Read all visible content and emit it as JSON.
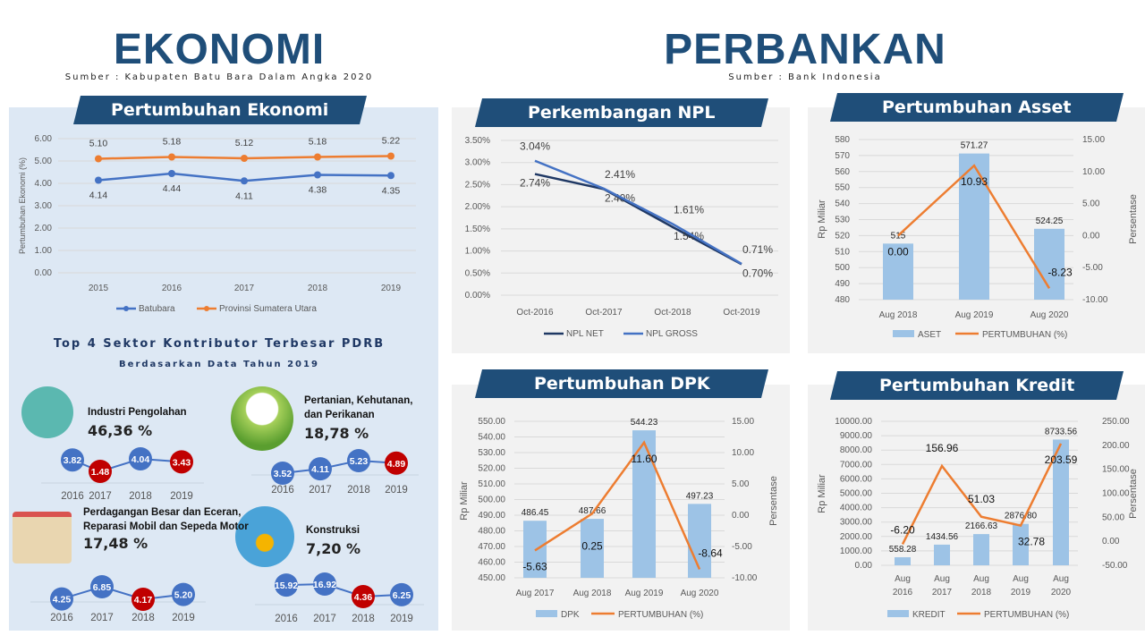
{
  "ekonomi": {
    "title": "EKONOMI",
    "source": "Sumber : Kabupaten Batu Bara Dalam Angka 2020"
  },
  "perbankan": {
    "title": "PERBANKAN",
    "source": "Sumber : Bank Indonesia"
  },
  "colors": {
    "navy": "#1f4e79",
    "blue": "#4472c4",
    "orange": "#ed7d31",
    "bar": "#9dc3e6",
    "red": "#c00000",
    "dark": "#1f3864"
  },
  "top4": {
    "title": "Top 4 Sektor Kontributor Terbesar PDRB",
    "subtitle": "Berdasarkan Data Tahun 2019",
    "sectors": [
      {
        "name": "Industri Pengolahan",
        "share": "46,36 %",
        "icon": "factory-icon",
        "years": [
          "2016",
          "2017",
          "2018",
          "2019"
        ],
        "values": [
          3.82,
          1.48,
          4.04,
          3.43
        ]
      },
      {
        "name": "Pertanian, Kehutanan, dan Perikanan",
        "share": "18,78 %",
        "icon": "farm-icon",
        "years": [
          "2016",
          "2017",
          "2018",
          "2019"
        ],
        "values": [
          3.52,
          4.11,
          5.23,
          4.89
        ]
      },
      {
        "name": "Perdagangan Besar dan Eceran, Reparasi Mobil dan Sepeda Motor",
        "share": "17,48 %",
        "icon": "shopping-icon",
        "years": [
          "2016",
          "2017",
          "2018",
          "2019"
        ],
        "values": [
          4.25,
          6.85,
          4.17,
          5.2
        ]
      },
      {
        "name": "Konstruksi",
        "share": "7,20 %",
        "icon": "construction-icon",
        "years": [
          "2016",
          "2017",
          "2018",
          "2019"
        ],
        "values": [
          15.92,
          16.92,
          4.36,
          6.25
        ]
      }
    ]
  },
  "chart_data": [
    {
      "id": "ekonomi",
      "type": "line",
      "title": "Pertumbuhan Ekonomi",
      "ylabel": "Pertumbuhan Ekonomi (%)",
      "categories": [
        "2015",
        "2016",
        "2017",
        "2018",
        "2019"
      ],
      "ylim": [
        0,
        6
      ],
      "yticks": [
        "0.00",
        "1.00",
        "2.00",
        "3.00",
        "4.00",
        "5.00",
        "6.00"
      ],
      "legend": "bottom",
      "series": [
        {
          "name": "Batubara",
          "color": "#4472c4",
          "values": [
            4.14,
            4.44,
            4.11,
            4.38,
            4.35
          ],
          "labels": [
            "4.14",
            "4.44",
            "4.11",
            "4.38",
            "4.35"
          ]
        },
        {
          "name": "Provinsi Sumatera Utara",
          "color": "#ed7d31",
          "values": [
            5.1,
            5.18,
            5.12,
            5.18,
            5.22
          ],
          "labels": [
            "5.10",
            "5.18",
            "5.12",
            "5.18",
            "5.22"
          ]
        }
      ]
    },
    {
      "id": "npl",
      "type": "line",
      "title": "Perkembangan NPL",
      "categories": [
        "Oct-2016",
        "Oct-2017",
        "Oct-2018",
        "Oct-2019"
      ],
      "ylim": [
        0,
        3.5
      ],
      "yticks": [
        "0.00%",
        "0.50%",
        "1.00%",
        "1.50%",
        "2.00%",
        "2.50%",
        "3.00%",
        "3.50%"
      ],
      "legend": "bottom",
      "series": [
        {
          "name": "NPL NET",
          "color": "#1f3864",
          "values": [
            2.74,
            2.4,
            1.54,
            0.7
          ],
          "labels": [
            "2.74%",
            "2.40%",
            "1.54%",
            "0.70%"
          ]
        },
        {
          "name": "NPL GROSS",
          "color": "#4472c4",
          "values": [
            3.04,
            2.41,
            1.61,
            0.71
          ],
          "labels": [
            "3.04%",
            "2.41%",
            "1.61%",
            "0.71%"
          ]
        }
      ]
    },
    {
      "id": "asset",
      "type": "bar+line",
      "title": "Pertumbuhan Asset",
      "ylabel": "Rp Miliar",
      "y2label": "Persentase",
      "categories": [
        "Aug 2018",
        "Aug 2019",
        "Aug 2020"
      ],
      "ylim": [
        480,
        580
      ],
      "yticks": [
        "480",
        "490",
        "500",
        "510",
        "520",
        "530",
        "540",
        "550",
        "560",
        "570",
        "580"
      ],
      "y2lim": [
        -10,
        15
      ],
      "y2ticks": [
        "-10.00",
        "-5.00",
        "0.00",
        "5.00",
        "10.00",
        "15.00"
      ],
      "bars": {
        "name": "ASET",
        "values": [
          515,
          571.27,
          524.25
        ],
        "labels": [
          "515",
          "571.27",
          "524.25"
        ]
      },
      "line": {
        "name": "PERTUMBUHAN (%)",
        "values": [
          0.0,
          10.93,
          -8.23
        ],
        "labels": [
          "0.00",
          "10.93",
          "-8.23"
        ]
      }
    },
    {
      "id": "dpk",
      "type": "bar+line",
      "title": "Pertumbuhan DPK",
      "ylabel": "Rp Miliar",
      "y2label": "Persentase",
      "categories": [
        "Aug 2017",
        "Aug 2018",
        "Aug 2019",
        "Aug 2020"
      ],
      "ylim": [
        450,
        550
      ],
      "yticks": [
        "450.00",
        "460.00",
        "470.00",
        "480.00",
        "490.00",
        "500.00",
        "510.00",
        "520.00",
        "530.00",
        "540.00",
        "550.00"
      ],
      "y2lim": [
        -10,
        15
      ],
      "y2ticks": [
        "-10.00",
        "-5.00",
        "0.00",
        "5.00",
        "10.00",
        "15.00"
      ],
      "bars": {
        "name": "DPK",
        "values": [
          486.45,
          487.66,
          544.23,
          497.23
        ],
        "labels": [
          "486.45",
          "487.66",
          "544.23",
          "497.23"
        ]
      },
      "line": {
        "name": "PERTUMBUHAN (%)",
        "values": [
          -5.63,
          0.25,
          11.6,
          -8.64
        ],
        "labels": [
          "-5.63",
          "0.25",
          "11.60",
          "-8.64"
        ]
      }
    },
    {
      "id": "kredit",
      "type": "bar+line",
      "title": "Pertumbuhan Kredit",
      "ylabel": "Rp Miliar",
      "y2label": "Persentase",
      "categories": [
        "Aug 2016",
        "Aug 2017",
        "Aug 2018",
        "Aug 2019",
        "Aug 2020"
      ],
      "ylim": [
        0,
        10000
      ],
      "yticks": [
        "0.00",
        "1000.00",
        "2000.00",
        "3000.00",
        "4000.00",
        "5000.00",
        "6000.00",
        "7000.00",
        "8000.00",
        "9000.00",
        "10000.00"
      ],
      "y2lim": [
        -50,
        250
      ],
      "y2ticks": [
        "-50.00",
        "0.00",
        "50.00",
        "100.00",
        "150.00",
        "200.00",
        "250.00"
      ],
      "bars": {
        "name": "KREDIT",
        "values": [
          558.28,
          1434.56,
          2166.63,
          2876.8,
          8733.56
        ],
        "labels": [
          "558.28",
          "1434.56",
          "2166.63",
          "2876.80",
          "8733.56"
        ]
      },
      "line": {
        "name": "PERTUMBUHAN (%)",
        "values": [
          -6.2,
          156.96,
          51.03,
          32.78,
          203.59
        ],
        "labels": [
          "-6.20",
          "156.96",
          "51.03",
          "32.78",
          "203.59"
        ]
      }
    }
  ]
}
